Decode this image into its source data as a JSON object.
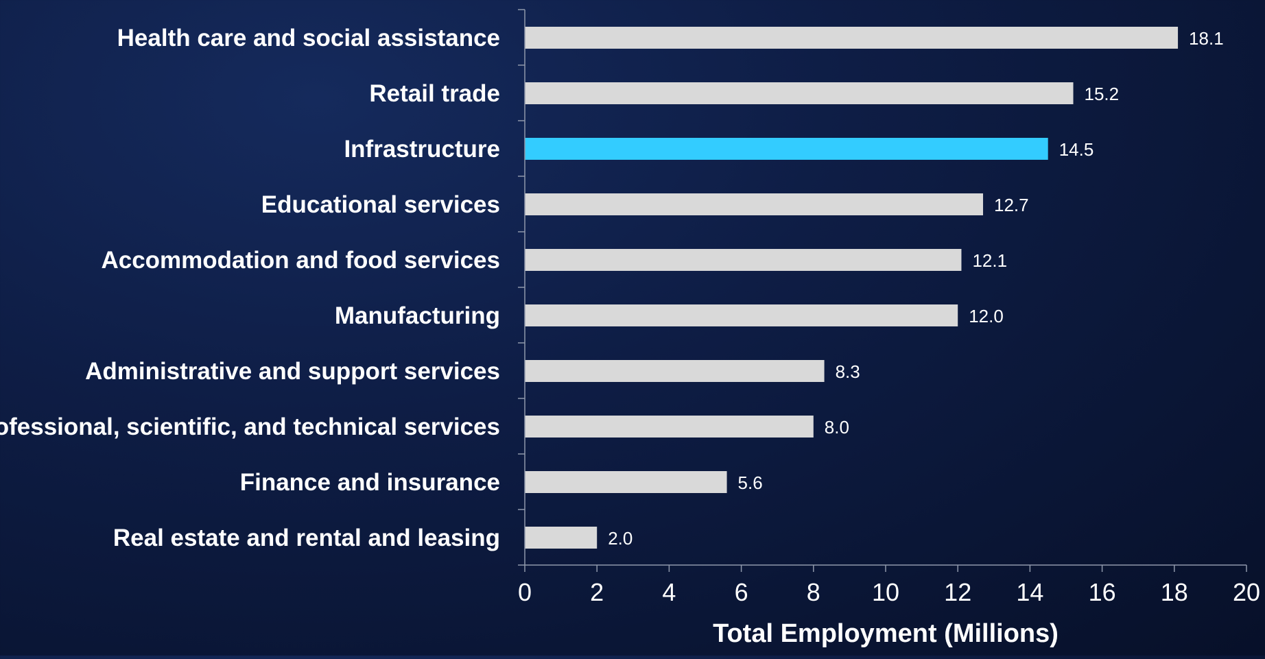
{
  "chart_data": {
    "type": "bar",
    "orientation": "horizontal",
    "title": "",
    "categories": [
      "Health care and social assistance",
      "Retail trade",
      "Infrastructure",
      "Educational services",
      "Accommodation and food services",
      "Manufacturing",
      "Administrative and support services",
      "Professional, scientific, and technical services",
      "Finance and insurance",
      "Real estate and rental and leasing"
    ],
    "values": [
      18.1,
      15.2,
      14.5,
      12.7,
      12.1,
      12.0,
      8.3,
      8.0,
      5.6,
      2.0
    ],
    "value_labels": [
      "18.1",
      "15.2",
      "14.5",
      "12.7",
      "12.1",
      "12.0",
      "8.3",
      "8.0",
      "5.6",
      "2.0"
    ],
    "highlight_category": "Infrastructure",
    "colors": {
      "bar": "#d9d9d9",
      "highlight": "#33ccff",
      "background": "#0b1634"
    },
    "xlabel": "Total Employment (Millions)",
    "ylabel": "",
    "xlim": [
      0,
      20
    ],
    "xticks": [
      "0",
      "2",
      "4",
      "6",
      "8",
      "10",
      "12",
      "14",
      "16",
      "18",
      "20"
    ],
    "grid": false,
    "legend": "none"
  }
}
